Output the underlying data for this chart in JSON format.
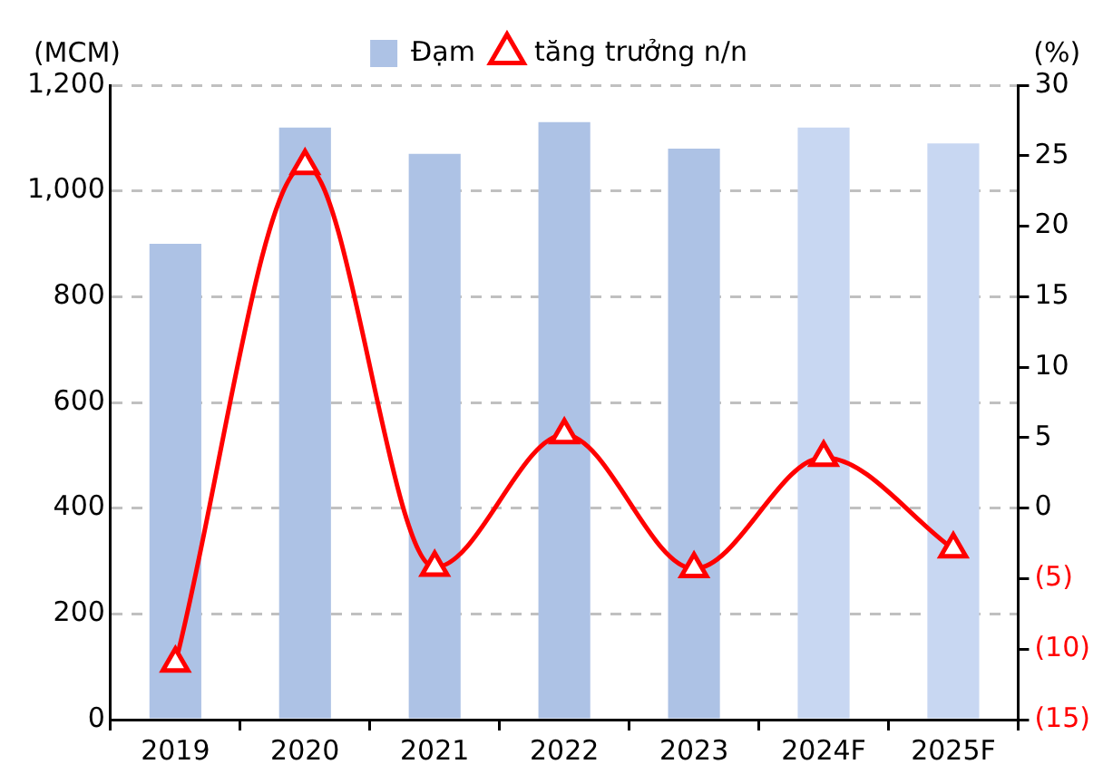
{
  "chart_data": {
    "type": "bar",
    "ylabel": "(MCM)",
    "y2label": "(%)",
    "categories": [
      "2019",
      "2020",
      "2021",
      "2022",
      "2023",
      "2024F",
      "2025F"
    ],
    "series": [
      {
        "name": "Đạm",
        "color": "#adc2e5",
        "colors": [
          "#adc2e5",
          "#adc2e5",
          "#adc2e5",
          "#adc2e5",
          "#adc2e5",
          "#c8d7f2",
          "#c8d7f2"
        ],
        "values": [
          900,
          1120,
          1070,
          1130,
          1080,
          1120,
          1090
        ]
      },
      {
        "name": "tăng trưởng n/n",
        "type": "line",
        "axis": "y2",
        "color": "#ff0000",
        "values": [
          -11,
          24.3,
          -4.2,
          5.2,
          -4.3,
          3.6,
          -2.9
        ]
      }
    ],
    "ylim": [
      0,
      1200
    ],
    "yticks": [
      0,
      200,
      400,
      600,
      800,
      {
        "value": 1000,
        "label": "1,000"
      },
      {
        "value": 1200,
        "label": "1,200"
      }
    ],
    "y2lim": [
      -15,
      30
    ],
    "y2ticks": [
      {
        "value": -15,
        "label": "(15)"
      },
      {
        "value": -10,
        "label": "(10)"
      },
      {
        "value": -5,
        "label": "(5)"
      },
      0,
      5,
      10,
      15,
      20,
      25,
      30
    ],
    "grid": "y",
    "legend": "top",
    "marker": "triangle",
    "line_style": "solid"
  }
}
